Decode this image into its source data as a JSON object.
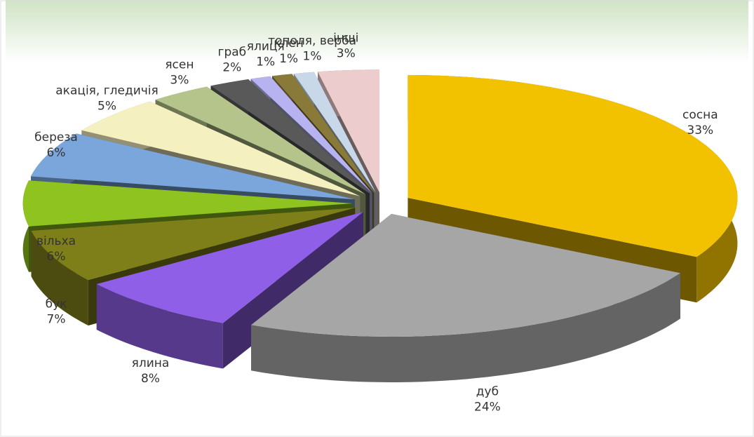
{
  "chart_data": {
    "type": "pie3d",
    "categories": [
      "сосна",
      "дуб",
      "ялина",
      "бук",
      "вільха",
      "береза",
      "акація, гледичія",
      "ясен",
      "граб",
      "ялиця",
      "клен",
      "тополя, верба",
      "інші"
    ],
    "values": [
      33,
      24,
      8,
      7,
      6,
      6,
      5,
      3,
      2,
      1,
      1,
      1,
      3
    ],
    "value_labels": [
      "33%",
      "24%",
      "8%",
      "7%",
      "6%",
      "6%",
      "5%",
      "3%",
      "2%",
      "1%",
      "1%",
      "1%",
      "3%"
    ],
    "colors": [
      "#f2c200",
      "#a6a6a6",
      "#8f5fe8",
      "#7f7f1a",
      "#8fc31f",
      "#7aa6dc",
      "#f5f0c0",
      "#b5c48a",
      "#595959",
      "#b7b3f0",
      "#8a7a3a",
      "#c8d8e8",
      "#eccccc"
    ]
  }
}
